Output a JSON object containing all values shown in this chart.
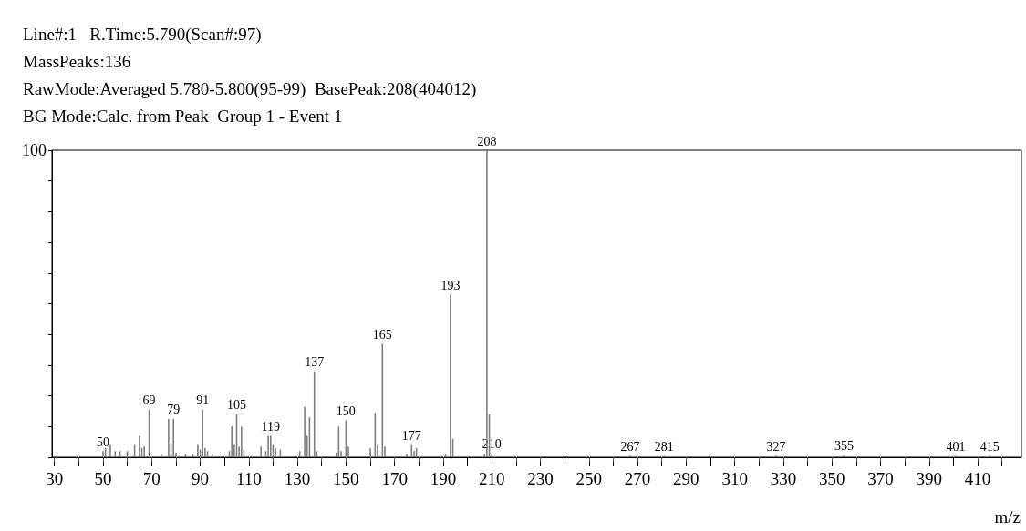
{
  "chart_data": {
    "type": "bar",
    "title": "Line#:1   R.Time:5.790(Scan#:97)",
    "subtitle": "MassPeaks:136\nRawMode:Averaged 5.780-5.800(95-99)  BasePeak:208(404012)\nBG Mode:Calc. from Peak  Group 1 - Event 1",
    "xlabel": "m/z",
    "annotations": [
      {
        "text": "50",
        "x": 50,
        "y": 2
      },
      {
        "text": "69",
        "x": 69,
        "y": 15.5
      },
      {
        "text": "79",
        "x": 79,
        "y": 12.5
      },
      {
        "text": "91",
        "x": 91,
        "y": 15.5
      },
      {
        "text": "105",
        "x": 105,
        "y": 14
      },
      {
        "text": "119",
        "x": 119,
        "y": 7
      },
      {
        "text": "137",
        "x": 137,
        "y": 28
      },
      {
        "text": "150",
        "x": 150,
        "y": 12
      },
      {
        "text": "165",
        "x": 165,
        "y": 37
      },
      {
        "text": "177",
        "x": 177,
        "y": 4
      },
      {
        "text": "193",
        "x": 193,
        "y": 53
      },
      {
        "text": "208",
        "x": 208,
        "y": 100
      },
      {
        "text": "210",
        "x": 210,
        "y": 1.2
      },
      {
        "text": "267",
        "x": 267,
        "y": 0.5
      },
      {
        "text": "281",
        "x": 281,
        "y": 0.5
      },
      {
        "text": "327",
        "x": 327,
        "y": 0.5
      },
      {
        "text": "355",
        "x": 355,
        "y": 0.6
      },
      {
        "text": "401",
        "x": 401,
        "y": 0.5
      },
      {
        "text": "415",
        "x": 415,
        "y": 0.5
      }
    ],
    "x": [
      50,
      51,
      53,
      55,
      57,
      60,
      63,
      65,
      66,
      67,
      69,
      74,
      77,
      78,
      79,
      80,
      84,
      87,
      89,
      90,
      91,
      92,
      93,
      95,
      102,
      103,
      104,
      105,
      106,
      107,
      108,
      115,
      117,
      118,
      119,
      120,
      121,
      123,
      131,
      133,
      134,
      135,
      137,
      138,
      146,
      147,
      148,
      150,
      151,
      160,
      162,
      163,
      165,
      166,
      175,
      177,
      178,
      179,
      191,
      193,
      194,
      207,
      208,
      209,
      210,
      267,
      281,
      327,
      355,
      401,
      415
    ],
    "values": [
      2,
      3,
      4,
      2,
      2,
      2,
      4,
      7,
      3,
      3.5,
      15.5,
      1,
      12.5,
      4.5,
      12.5,
      1.5,
      1,
      1,
      4,
      2.5,
      15.5,
      3,
      2,
      1,
      2,
      10,
      4,
      14,
      3.5,
      10,
      2.5,
      3.5,
      2,
      7,
      7,
      4,
      3,
      2.5,
      2,
      16.5,
      7,
      13,
      28,
      2,
      1.5,
      10,
      2,
      12,
      3.5,
      3,
      14.5,
      4,
      37,
      3.5,
      1,
      4,
      2,
      3,
      1,
      53,
      6,
      1,
      100,
      14,
      1.2,
      0.5,
      0.5,
      0.5,
      0.6,
      0.5,
      0.5
    ],
    "color": "#7f7f7f",
    "xlim": [
      29,
      428
    ],
    "xticks": [
      30,
      {
        "value": 40,
        "label": null
      },
      50,
      {
        "value": 60,
        "label": null
      },
      70,
      {
        "value": 80,
        "label": null
      },
      90,
      {
        "value": 100,
        "label": null
      },
      110,
      {
        "value": 120,
        "label": null
      },
      130,
      {
        "value": 140,
        "label": null
      },
      150,
      {
        "value": 160,
        "label": null
      },
      170,
      {
        "value": 180,
        "label": null
      },
      190,
      {
        "value": 200,
        "label": null
      },
      210,
      {
        "value": 220,
        "label": null
      },
      230,
      {
        "value": 240,
        "label": null
      },
      250,
      {
        "value": 260,
        "label": null
      },
      270,
      {
        "value": 280,
        "label": null
      },
      290,
      {
        "value": 300,
        "label": null
      },
      310,
      {
        "value": 320,
        "label": null
      },
      330,
      {
        "value": 340,
        "label": null
      },
      350,
      {
        "value": 360,
        "label": null
      },
      370,
      {
        "value": 380,
        "label": null
      },
      390,
      {
        "value": 400,
        "label": null
      },
      410,
      {
        "value": 420,
        "label": null
      }
    ],
    "ylim": [
      0,
      100
    ],
    "yticks": [
      {
        "value": 0,
        "label": null
      },
      {
        "value": 10,
        "label": null
      },
      {
        "value": 20,
        "label": null
      },
      {
        "value": 30,
        "label": null
      },
      {
        "value": 40,
        "label": null
      },
      {
        "value": 50,
        "label": null
      },
      {
        "value": 60,
        "label": null
      },
      {
        "value": 70,
        "label": null
      },
      {
        "value": 80,
        "label": null
      },
      {
        "value": 90,
        "label": null
      },
      100
    ],
    "grid": false
  }
}
